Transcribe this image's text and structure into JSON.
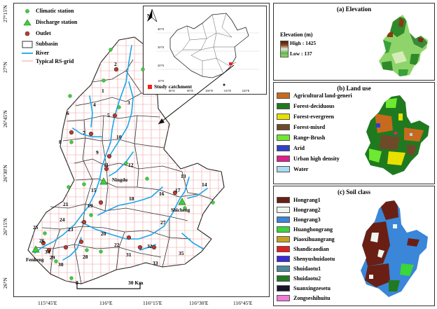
{
  "main_map": {
    "legend": {
      "climatic_station": "Climatic station",
      "discharge_station": "Discharge station",
      "outlet": "Outlet",
      "subbasin": "Subbasin",
      "river": "River",
      "rs_grid": "Typical RS-grid"
    },
    "inset": {
      "north_label": "N",
      "study_label": "Study catchment",
      "lat_ticks": [
        "40°N",
        "30°N",
        "20°N",
        "10°N"
      ],
      "lon_ticks": [
        "80°E",
        "90°E",
        "100°E",
        "110°E",
        "120°E"
      ]
    },
    "y_ticks": [
      "27°15'N",
      "27°N",
      "26°45'N",
      "26°30'N",
      "26°15'N",
      "26°N"
    ],
    "x_ticks": [
      "115°45'E",
      "116°E",
      "116°15'E",
      "116°30'E",
      "116°45'E"
    ],
    "station_names": {
      "ningdu": "Ningdu",
      "shicheng": "Shicheng",
      "fenkeng": "Fenkeng"
    },
    "subbasin_numbers": [
      "1",
      "2",
      "3",
      "4",
      "5",
      "6",
      "7",
      "8",
      "9",
      "10",
      "11",
      "12",
      "13",
      "14",
      "15",
      "16",
      "17",
      "18",
      "19",
      "20",
      "21",
      "22",
      "23",
      "24",
      "25",
      "26",
      "27",
      "28",
      "29",
      "30",
      "31",
      "32",
      "33",
      "34",
      "35"
    ],
    "scale_bar": {
      "left": "0",
      "right": "30 Km"
    }
  },
  "elevation_panel": {
    "title": "(a) Elevation",
    "legend_title": "Elevation (m)",
    "high": "High : 1425",
    "low": "Low : 137"
  },
  "landuse_panel": {
    "title": "(b) Land use",
    "classes": [
      {
        "label": "Agricultural land-generi",
        "color": "#c86a1e"
      },
      {
        "label": "Forest-deciduous",
        "color": "#1f7a1f"
      },
      {
        "label": "Forest-evergreen",
        "color": "#e8e000"
      },
      {
        "label": "Forest-mixed",
        "color": "#6e4a2a"
      },
      {
        "label": "Range-Brush",
        "color": "#6ee830"
      },
      {
        "label": "Arid",
        "color": "#3040c8"
      },
      {
        "label": "Urban high density",
        "color": "#e0208a"
      },
      {
        "label": "Water",
        "color": "#a8dcf0"
      }
    ]
  },
  "soil_panel": {
    "title": "(c) Soil class",
    "classes": [
      {
        "label": "Hongrang1",
        "color": "#6a1f14"
      },
      {
        "label": "Hongrang2",
        "color": "#eef6ee"
      },
      {
        "label": "Hongrang3",
        "color": "#3a86d8"
      },
      {
        "label": "Huanghongrang",
        "color": "#3ad63a"
      },
      {
        "label": "Piaoxihuangrang",
        "color": "#c8a020"
      },
      {
        "label": "Shandicaodian",
        "color": "#e02020"
      },
      {
        "label": "Shenyushuidaotu",
        "color": "#3a2ad8"
      },
      {
        "label": "Shuidaotu1",
        "color": "#4a8a9a"
      },
      {
        "label": "Shuidaotu2",
        "color": "#207a20"
      },
      {
        "label": "Suanxingzesetu",
        "color": "#14142a"
      },
      {
        "label": "Zongseshihuitu",
        "color": "#f07ad8"
      }
    ]
  }
}
